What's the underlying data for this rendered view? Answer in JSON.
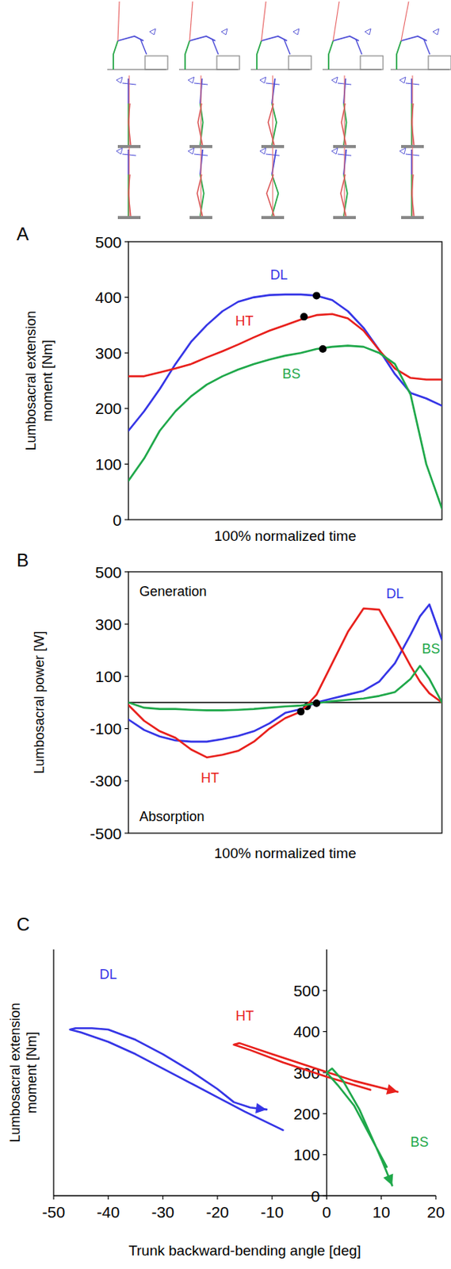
{
  "chart_data": [
    {
      "type": "line",
      "panel": "A",
      "xlabel": "100% normalized time",
      "ylabel": "Lumbosacral extension moment [Nm]",
      "x": [
        0,
        5,
        10,
        15,
        20,
        25,
        30,
        35,
        40,
        45,
        50,
        55,
        60,
        65,
        70,
        75,
        80,
        85,
        90,
        95,
        100
      ],
      "xlim": [
        0,
        100
      ],
      "ylim": [
        0,
        500
      ],
      "yticks": [
        0,
        100,
        200,
        300,
        400,
        500
      ],
      "tick_labels": "y",
      "series": [
        {
          "name": "DL",
          "color": "#3535e6",
          "values": [
            160,
            195,
            235,
            280,
            320,
            350,
            375,
            392,
            400,
            404,
            405,
            405,
            403,
            395,
            375,
            345,
            305,
            262,
            228,
            218,
            205
          ],
          "dot": {
            "x": 60,
            "y": 403
          }
        },
        {
          "name": "HT",
          "color": "#e8201c",
          "values": [
            258,
            258,
            265,
            272,
            280,
            292,
            303,
            315,
            328,
            340,
            350,
            360,
            368,
            370,
            362,
            340,
            305,
            272,
            255,
            252,
            252
          ],
          "dot": {
            "x": 56,
            "y": 365
          }
        },
        {
          "name": "BS",
          "color": "#1fa84a",
          "values": [
            70,
            110,
            160,
            195,
            222,
            243,
            258,
            270,
            280,
            288,
            295,
            300,
            307,
            311,
            313,
            311,
            300,
            280,
            225,
            100,
            20
          ],
          "dot": {
            "x": 62,
            "y": 307
          }
        }
      ]
    },
    {
      "type": "line",
      "panel": "B",
      "xlabel": "100% normalized time",
      "ylabel": "Lumbosacral power [W]",
      "annotations": [
        "Generation",
        "Absorption"
      ],
      "x": [
        0,
        5,
        10,
        15,
        20,
        25,
        30,
        35,
        40,
        45,
        50,
        55,
        60,
        65,
        70,
        75,
        80,
        85,
        90,
        93,
        96,
        100
      ],
      "xlim": [
        0,
        100
      ],
      "ylim": [
        -500,
        500
      ],
      "yticks": [
        -500,
        -300,
        -100,
        100,
        300,
        500
      ],
      "tick_labels": "y",
      "series": [
        {
          "name": "DL",
          "color": "#3535e6",
          "values": [
            -65,
            -105,
            -130,
            -145,
            -150,
            -150,
            -140,
            -128,
            -110,
            -80,
            -40,
            -25,
            0,
            15,
            30,
            45,
            80,
            150,
            260,
            330,
            375,
            240
          ],
          "dot": {
            "x": 57,
            "y": -15
          }
        },
        {
          "name": "HT",
          "color": "#e8201c",
          "values": [
            -10,
            -70,
            -110,
            -135,
            -180,
            -210,
            -200,
            -185,
            -150,
            -100,
            -60,
            -35,
            30,
            150,
            270,
            360,
            355,
            250,
            140,
            80,
            35,
            0
          ],
          "dot": {
            "x": 55,
            "y": -35
          }
        },
        {
          "name": "BS",
          "color": "#1fa84a",
          "values": [
            0,
            -20,
            -25,
            -25,
            -28,
            -30,
            -30,
            -28,
            -25,
            -20,
            -15,
            -12,
            -3,
            5,
            10,
            15,
            25,
            40,
            90,
            140,
            90,
            0
          ],
          "dot": {
            "x": 60,
            "y": -3
          }
        }
      ]
    },
    {
      "type": "line",
      "panel": "C",
      "xlabel": "Trunk backward-bending angle [deg]",
      "ylabel": "Lumbosacral extension moment [Nm]",
      "xlim": [
        -50,
        20
      ],
      "xticks": [
        -50,
        -40,
        -30,
        -20,
        -10,
        0,
        10,
        20
      ],
      "ylim": [
        0,
        600
      ],
      "yticks": [
        0,
        100,
        200,
        300,
        400,
        500
      ],
      "series": [
        {
          "name": "DL",
          "color": "#3535e6",
          "marker": "arrow",
          "x": [
            -8,
            -15,
            -20,
            -25,
            -30,
            -35,
            -40,
            -45,
            -47,
            -46,
            -43,
            -40,
            -35,
            -30,
            -25,
            -20,
            -17,
            -14,
            -11
          ],
          "values": [
            160,
            205,
            240,
            275,
            310,
            345,
            375,
            398,
            405,
            408,
            408,
            405,
            380,
            345,
            305,
            260,
            228,
            215,
            210
          ]
        },
        {
          "name": "HT",
          "color": "#e8201c",
          "marker": "arrow",
          "x": [
            8,
            0,
            -8,
            -14,
            -17,
            -16,
            -10,
            -2,
            5,
            13
          ],
          "values": [
            258,
            290,
            325,
            355,
            368,
            372,
            345,
            310,
            280,
            253
          ]
        },
        {
          "name": "BS",
          "color": "#1fa84a",
          "marker": "arrow",
          "x": [
            11,
            9,
            7,
            5,
            2,
            0,
            1,
            3,
            6,
            8,
            10,
            12
          ],
          "values": [
            70,
            120,
            170,
            220,
            270,
            300,
            310,
            280,
            210,
            150,
            90,
            25
          ]
        }
      ]
    }
  ]
}
